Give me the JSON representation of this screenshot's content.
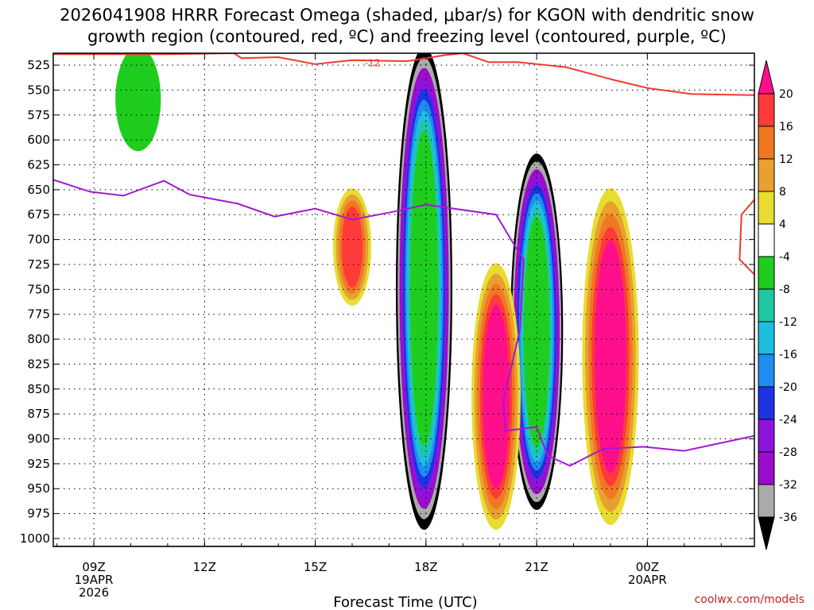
{
  "chart_data": {
    "type": "heatmap",
    "title_line1": "2026041908 HRRR Forecast Omega (shaded, μbar/s) for KGON with dendritic snow",
    "title_line2": "growth region (contoured, red, ºC) and freezing level (contoured, purple, ºC)",
    "xlabel": "Forecast Time (UTC)",
    "ylabel": "",
    "credit": "coolwx.com/models",
    "y_levels": [
      "525",
      "550",
      "575",
      "600",
      "625",
      "650",
      "675",
      "700",
      "725",
      "750",
      "775",
      "800",
      "825",
      "850",
      "875",
      "900",
      "925",
      "950",
      "975",
      "1000"
    ],
    "ylim": [
      513,
      1008
    ],
    "x_range_hours": [
      7.9,
      26.9
    ],
    "x_ticks": [
      {
        "hour": 9,
        "line1": "09Z",
        "line2": "19APR",
        "line3": "2026"
      },
      {
        "hour": 12,
        "line1": "12Z",
        "line2": "",
        "line3": ""
      },
      {
        "hour": 15,
        "line1": "15Z",
        "line2": "",
        "line3": ""
      },
      {
        "hour": 18,
        "line1": "18Z",
        "line2": "",
        "line3": ""
      },
      {
        "hour": 21,
        "line1": "21Z",
        "line2": "",
        "line3": ""
      },
      {
        "hour": 24,
        "line1": "00Z",
        "line2": "20APR",
        "line3": ""
      }
    ],
    "colorbar": {
      "labels": [
        "20",
        "16",
        "12",
        "8",
        "4",
        "-4",
        "-8",
        "-12",
        "-16",
        "-20",
        "-24",
        "-28",
        "-32",
        "-36"
      ],
      "colors": [
        "#ff0f8c",
        "#ff3a3a",
        "#f07820",
        "#e8a030",
        "#e8dc30",
        "#ffffff",
        "#1ecd1e",
        "#1ec8a0",
        "#1ebede",
        "#1e8cf0",
        "#1e32e6",
        "#8c14dc",
        "#9c0ccc",
        "#aaaaaa",
        "#000000"
      ],
      "units": "μbar/s"
    },
    "omega_features": [
      {
        "name": "ascent-core-18z",
        "hour": 17.95,
        "top": 513,
        "bottom": 985,
        "width_h": 0.55,
        "omega": -40
      },
      {
        "name": "ascent-core-21z",
        "hour": 21.0,
        "top": 620,
        "bottom": 965,
        "width_h": 0.5,
        "omega": -40
      },
      {
        "name": "descent-core-20z",
        "hour": 19.9,
        "top": 730,
        "bottom": 985,
        "width_h": 0.45,
        "omega": 22
      },
      {
        "name": "descent-core-23z",
        "hour": 23.0,
        "top": 655,
        "bottom": 980,
        "width_h": 0.55,
        "omega": 22
      },
      {
        "name": "descent-core-16z",
        "hour": 16.0,
        "top": 655,
        "bottom": 760,
        "width_h": 0.3,
        "omega": 18
      },
      {
        "name": "ascent-weak-10z",
        "hour": 10.2,
        "top": 513,
        "bottom": 605,
        "width_h": 0.4,
        "omega": -6
      }
    ],
    "dendritic_region_label": "-12",
    "dendritic_contour": [
      {
        "hour": 7.9,
        "p": 514
      },
      {
        "hour": 9.5,
        "p": 514
      },
      {
        "hour": 11.0,
        "p": 514
      },
      {
        "hour": 12.8,
        "p": 513
      },
      {
        "hour": 13.0,
        "p": 518
      },
      {
        "hour": 14.0,
        "p": 517
      },
      {
        "hour": 15.0,
        "p": 524
      },
      {
        "hour": 16.0,
        "p": 520
      },
      {
        "hour": 17.5,
        "p": 521
      },
      {
        "hour": 18.5,
        "p": 515
      },
      {
        "hour": 19.0,
        "p": 513
      },
      {
        "hour": 19.7,
        "p": 522
      },
      {
        "hour": 20.5,
        "p": 522
      },
      {
        "hour": 21.8,
        "p": 527
      },
      {
        "hour": 23.0,
        "p": 539
      },
      {
        "hour": 24.0,
        "p": 548
      },
      {
        "hour": 25.2,
        "p": 554
      },
      {
        "hour": 26.9,
        "p": 555
      }
    ],
    "dendritic_contour_right": [
      {
        "hour": 26.9,
        "p": 660
      },
      {
        "hour": 26.55,
        "p": 675
      },
      {
        "hour": 26.5,
        "p": 720
      },
      {
        "hour": 26.9,
        "p": 735
      }
    ],
    "freezing_level": [
      {
        "hour": 7.9,
        "p": 640
      },
      {
        "hour": 8.9,
        "p": 652
      },
      {
        "hour": 9.8,
        "p": 656
      },
      {
        "hour": 10.9,
        "p": 641
      },
      {
        "hour": 11.6,
        "p": 655
      },
      {
        "hour": 12.9,
        "p": 664
      },
      {
        "hour": 13.9,
        "p": 677
      },
      {
        "hour": 15.0,
        "p": 669
      },
      {
        "hour": 16.0,
        "p": 680
      },
      {
        "hour": 17.0,
        "p": 673
      },
      {
        "hour": 18.0,
        "p": 665
      },
      {
        "hour": 19.9,
        "p": 675
      },
      {
        "hour": 20.5,
        "p": 712
      },
      {
        "hour": 20.65,
        "p": 720
      },
      {
        "hour": 20.55,
        "p": 790
      },
      {
        "hour": 20.3,
        "p": 830
      },
      {
        "hour": 20.1,
        "p": 860
      },
      {
        "hour": 20.15,
        "p": 892
      },
      {
        "hour": 21.0,
        "p": 888
      },
      {
        "hour": 21.3,
        "p": 917
      },
      {
        "hour": 21.9,
        "p": 927
      },
      {
        "hour": 22.8,
        "p": 910
      },
      {
        "hour": 23.9,
        "p": 908
      },
      {
        "hour": 25.0,
        "p": 912
      },
      {
        "hour": 26.9,
        "p": 897
      }
    ]
  }
}
